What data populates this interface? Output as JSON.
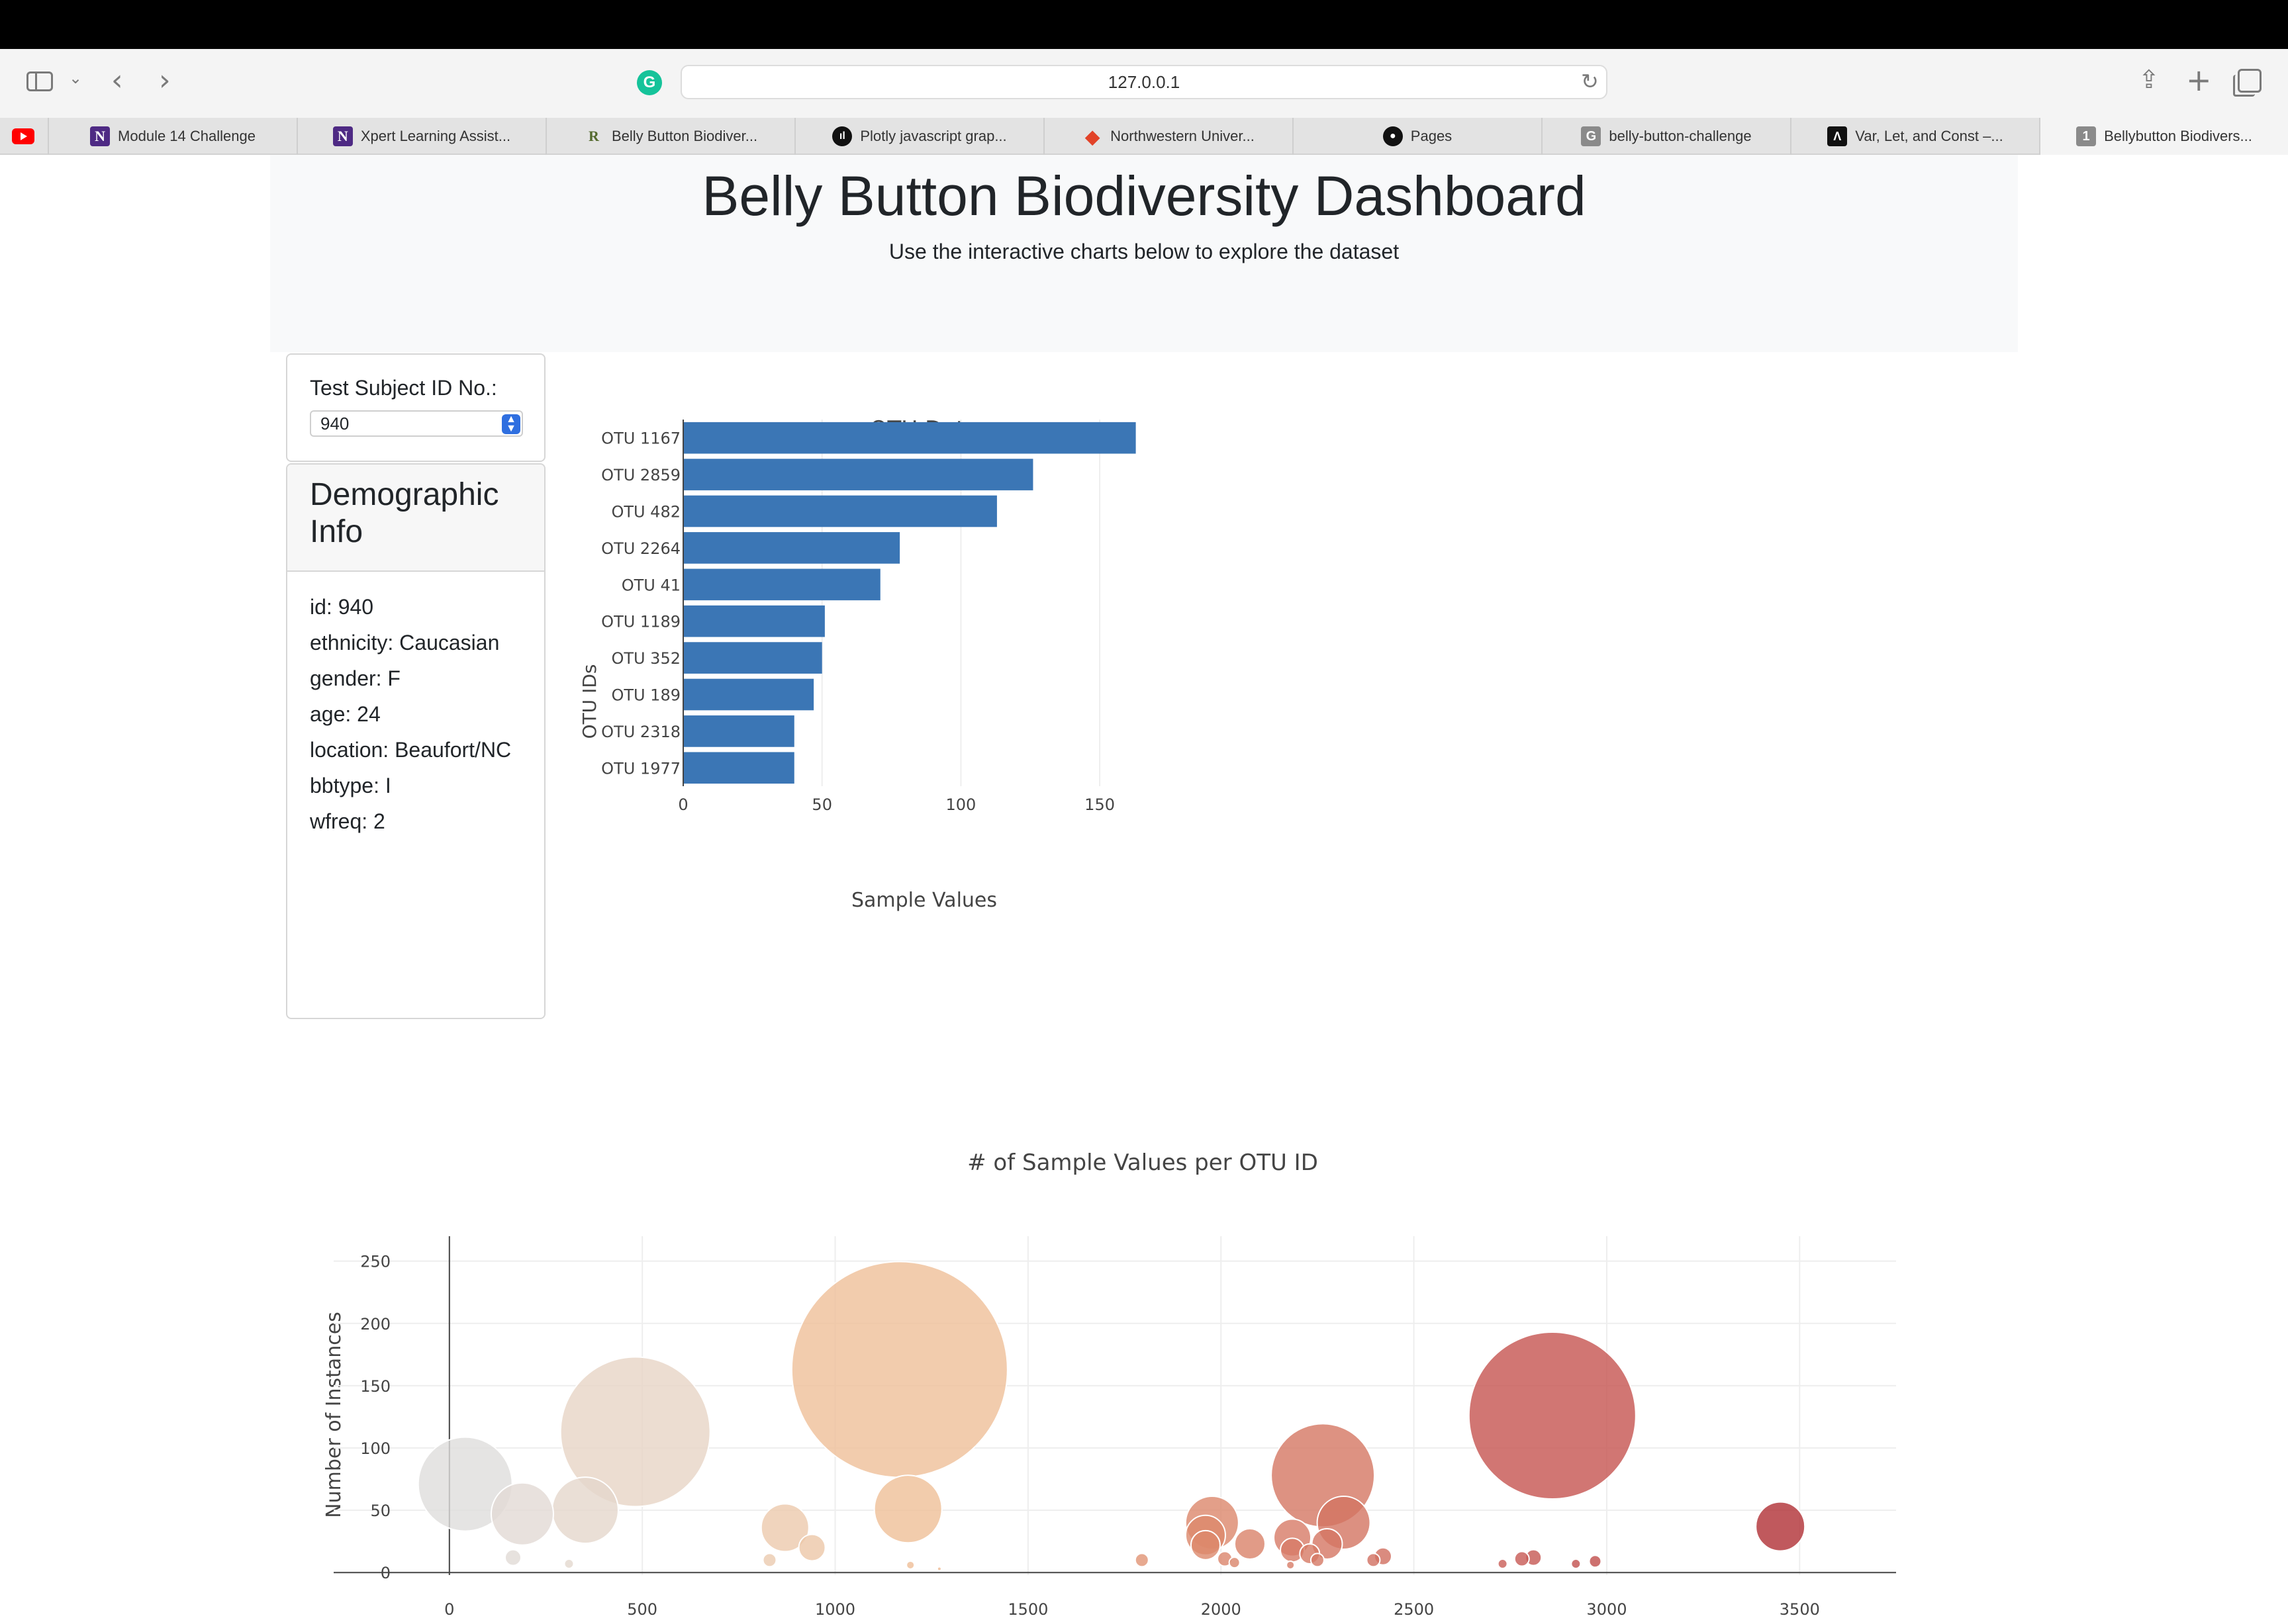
{
  "browser": {
    "url": "127.0.0.1",
    "tabs": [
      {
        "label": "Module 14 Challenge",
        "icon": "northwestern-n-icon",
        "glyph": "N"
      },
      {
        "label": "Xpert Learning Assist...",
        "icon": "northwestern-n-icon",
        "glyph": "N"
      },
      {
        "label": "Belly Button Biodiver...",
        "icon": "r-logo-icon",
        "glyph": "R"
      },
      {
        "label": "Plotly javascript grap...",
        "icon": "plotly-icon",
        "glyph": "ıl"
      },
      {
        "label": "Northwestern Univer...",
        "icon": "gitlab-icon",
        "glyph": "◆"
      },
      {
        "label": "Pages",
        "icon": "github-icon",
        "glyph": "●"
      },
      {
        "label": "belly-button-challenge",
        "icon": "g-letter-icon",
        "glyph": "G"
      },
      {
        "label": "Var, Let, and Const –...",
        "icon": "a-logo-icon",
        "glyph": "Λ"
      },
      {
        "label": "Bellybutton Biodivers...",
        "icon": "number-one-icon",
        "glyph": "1"
      }
    ]
  },
  "header": {
    "title": "Belly Button Biodiversity Dashboard",
    "lead": "Use the interactive charts below to explore the dataset"
  },
  "selector": {
    "label": "Test Subject ID No.:",
    "value": "940"
  },
  "demographic": {
    "title": "Demographic Info",
    "lines": [
      "id: 940",
      "ethnicity: Caucasian",
      "gender: F",
      "age: 24",
      "location: Beaufort/NC",
      "bbtype: I",
      "wfreq: 2"
    ]
  },
  "chart_data": [
    {
      "type": "bar",
      "orientation": "horizontal",
      "title": "OTU Data",
      "xlabel": "Sample Values",
      "ylabel": "OTU IDs",
      "categories": [
        "OTU 1167",
        "OTU 2859",
        "OTU 482",
        "OTU 2264",
        "OTU 41",
        "OTU 1189",
        "OTU 352",
        "OTU 189",
        "OTU 2318",
        "OTU 1977"
      ],
      "values": [
        163,
        126,
        113,
        78,
        71,
        51,
        50,
        47,
        40,
        40
      ],
      "xlim": [
        0,
        165
      ],
      "xticks": [
        0,
        50,
        100,
        150
      ],
      "color": "#3b76b5",
      "grid": true
    },
    {
      "type": "scatter",
      "subtype": "bubble",
      "title": "# of Sample Values per OTU ID",
      "xlabel": "",
      "ylabel": "Number of Instances",
      "xlim": [
        -300,
        3750
      ],
      "ylim": [
        -2,
        270
      ],
      "xticks": [
        0,
        500,
        1000,
        1500,
        2000,
        2500,
        3000,
        3500
      ],
      "yticks": [
        0,
        50,
        100,
        150,
        200,
        250
      ],
      "colorscale": "Earth",
      "grid": true,
      "points": [
        {
          "x": 41,
          "y": 71
        },
        {
          "x": 189,
          "y": 47
        },
        {
          "x": 352,
          "y": 50
        },
        {
          "x": 482,
          "y": 113
        },
        {
          "x": 165,
          "y": 12
        },
        {
          "x": 310,
          "y": 7
        },
        {
          "x": 870,
          "y": 36
        },
        {
          "x": 940,
          "y": 20
        },
        {
          "x": 830,
          "y": 10
        },
        {
          "x": 1167,
          "y": 163
        },
        {
          "x": 1189,
          "y": 51
        },
        {
          "x": 1195,
          "y": 6
        },
        {
          "x": 1270,
          "y": 3
        },
        {
          "x": 1795,
          "y": 10
        },
        {
          "x": 1977,
          "y": 40
        },
        {
          "x": 1960,
          "y": 30
        },
        {
          "x": 1960,
          "y": 22
        },
        {
          "x": 2010,
          "y": 11
        },
        {
          "x": 2035,
          "y": 8
        },
        {
          "x": 2075,
          "y": 23
        },
        {
          "x": 2185,
          "y": 28
        },
        {
          "x": 2185,
          "y": 18
        },
        {
          "x": 2180,
          "y": 6
        },
        {
          "x": 2230,
          "y": 15
        },
        {
          "x": 2250,
          "y": 10
        },
        {
          "x": 2264,
          "y": 78
        },
        {
          "x": 2275,
          "y": 23
        },
        {
          "x": 2318,
          "y": 40
        },
        {
          "x": 2395,
          "y": 10
        },
        {
          "x": 2420,
          "y": 13
        },
        {
          "x": 2730,
          "y": 7
        },
        {
          "x": 2780,
          "y": 11
        },
        {
          "x": 2810,
          "y": 12
        },
        {
          "x": 2859,
          "y": 126
        },
        {
          "x": 2920,
          "y": 7
        },
        {
          "x": 2970,
          "y": 9
        },
        {
          "x": 3450,
          "y": 37
        }
      ]
    }
  ]
}
